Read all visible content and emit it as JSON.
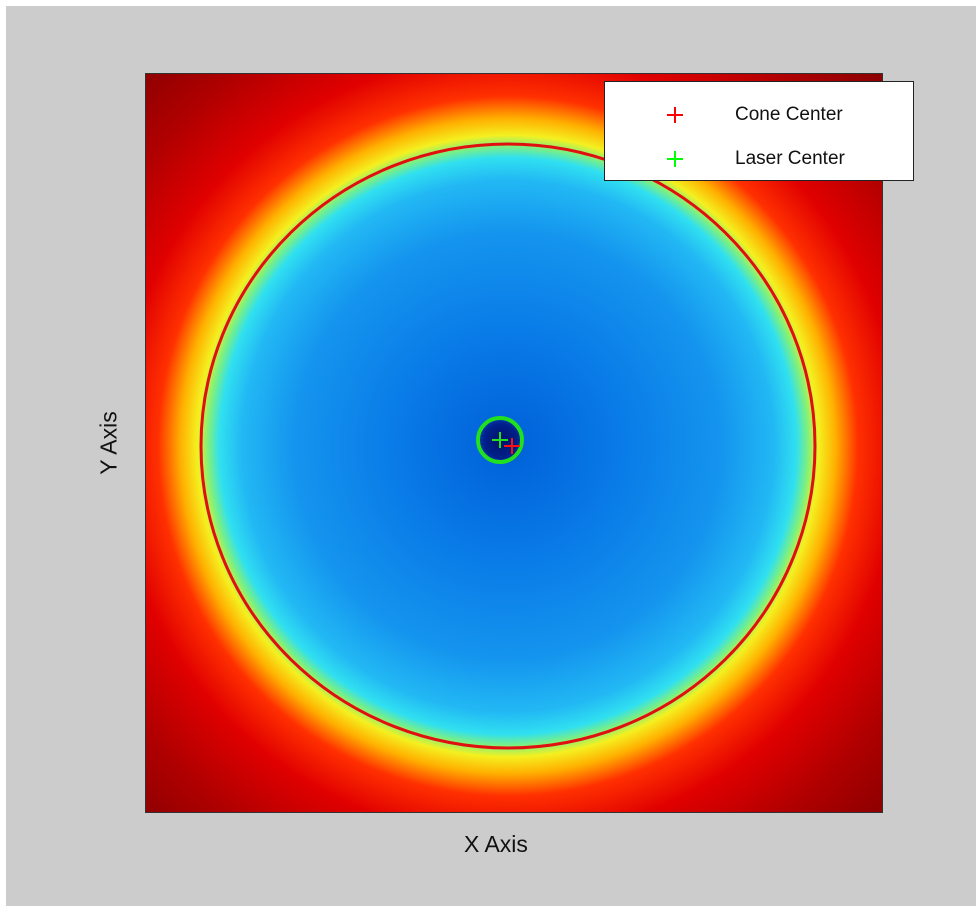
{
  "chart_data": {
    "type": "heatmap",
    "title": "",
    "xlabel": "X Axis",
    "ylabel": "Y Axis",
    "colormap": "jet",
    "grid": false,
    "legend_position": "top-right",
    "legend": [
      {
        "label": "Cone Center",
        "marker": "+",
        "color": "#ff0000"
      },
      {
        "label": "Laser Center",
        "marker": "+",
        "color": "#00ff00"
      }
    ],
    "colors": {
      "cone_contour": "#e01010",
      "laser_contour": "#20e020",
      "background": "#cccccc"
    }
  }
}
